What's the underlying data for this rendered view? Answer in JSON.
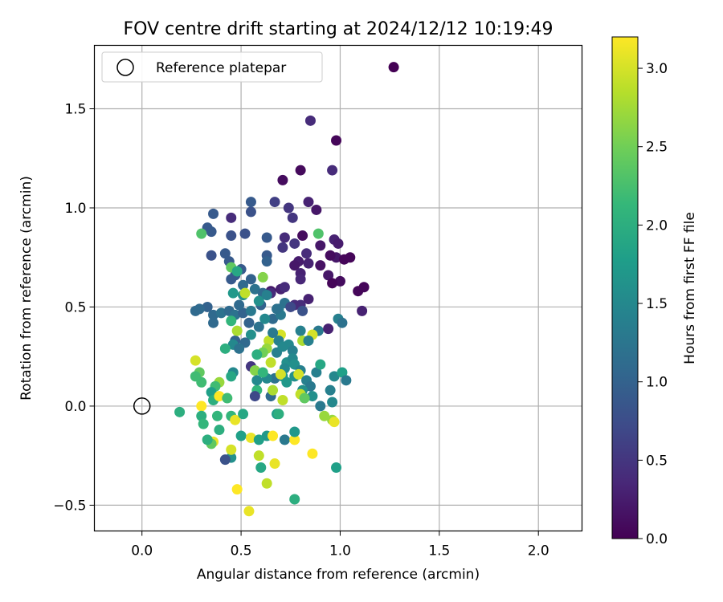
{
  "chart_data": {
    "type": "scatter",
    "title": "FOV centre drift starting at 2024/12/12 10:19:49",
    "xlabel": "Angular distance from reference (arcmin)",
    "ylabel": "Rotation from reference (arcmin)",
    "xlim": [
      -0.24,
      2.22
    ],
    "ylim": [
      -0.63,
      1.82
    ],
    "xticks": [
      0.0,
      0.5,
      1.0,
      1.5,
      2.0
    ],
    "xtick_labels": [
      "0.0",
      "0.5",
      "1.0",
      "1.5",
      "2.0"
    ],
    "yticks": [
      -0.5,
      0.0,
      0.5,
      1.0,
      1.5
    ],
    "ytick_labels": [
      "−0.5",
      "0.0",
      "0.5",
      "1.0",
      "1.5"
    ],
    "grid": true,
    "legend": {
      "position": "upper-left",
      "label": "Reference platepar"
    },
    "reference_point": {
      "x": 0.0,
      "y": 0.0
    },
    "colorbar": {
      "label": "Hours from first FF file",
      "colormap": "viridis",
      "range": [
        0.0,
        3.2
      ],
      "ticks": [
        0.0,
        0.5,
        1.0,
        1.5,
        2.0,
        2.5,
        3.0
      ],
      "tick_labels": [
        "0.0",
        "0.5",
        "1.0",
        "1.5",
        "2.0",
        "2.5",
        "3.0"
      ]
    },
    "colors": {
      "viridis": [
        "#440154",
        "#482878",
        "#3e4a89",
        "#31688e",
        "#26828e",
        "#1f9e89",
        "#35b779",
        "#6ece58",
        "#b5de2b",
        "#fde725"
      ]
    },
    "points": [
      [
        1.27,
        1.71,
        0.0
      ],
      [
        0.98,
        1.34,
        0.05
      ],
      [
        0.8,
        1.19,
        0.08
      ],
      [
        0.71,
        1.14,
        0.1
      ],
      [
        0.85,
        1.44,
        0.4
      ],
      [
        0.96,
        1.19,
        0.4
      ],
      [
        0.84,
        1.03,
        0.3
      ],
      [
        0.88,
        0.99,
        0.2
      ],
      [
        0.74,
        1.0,
        0.5
      ],
      [
        0.67,
        1.03,
        0.6
      ],
      [
        0.76,
        0.95,
        0.5
      ],
      [
        0.72,
        0.85,
        0.4
      ],
      [
        0.77,
        0.82,
        0.5
      ],
      [
        0.71,
        0.8,
        0.5
      ],
      [
        0.81,
        0.86,
        0.1
      ],
      [
        0.9,
        0.81,
        0.2
      ],
      [
        0.97,
        0.84,
        0.3
      ],
      [
        0.99,
        0.82,
        0.25
      ],
      [
        0.98,
        0.75,
        0.2
      ],
      [
        0.95,
        0.76,
        0.1
      ],
      [
        1.02,
        0.74,
        0.05
      ],
      [
        1.05,
        0.75,
        0.05
      ],
      [
        0.9,
        0.71,
        0.15
      ],
      [
        0.84,
        0.72,
        0.3
      ],
      [
        0.83,
        0.77,
        0.4
      ],
      [
        0.79,
        0.73,
        0.25
      ],
      [
        0.77,
        0.71,
        0.2
      ],
      [
        0.8,
        0.67,
        0.3
      ],
      [
        0.8,
        0.64,
        0.35
      ],
      [
        0.94,
        0.66,
        0.2
      ],
      [
        1.0,
        0.63,
        0.1
      ],
      [
        0.96,
        0.62,
        0.05
      ],
      [
        1.09,
        0.58,
        0.05
      ],
      [
        1.12,
        0.6,
        0.05
      ],
      [
        0.84,
        0.54,
        0.3
      ],
      [
        0.8,
        0.51,
        0.4
      ],
      [
        0.77,
        0.51,
        0.4
      ],
      [
        0.7,
        0.59,
        0.3
      ],
      [
        0.72,
        0.6,
        0.4
      ],
      [
        0.65,
        0.58,
        0.2
      ],
      [
        0.55,
        0.98,
        0.8
      ],
      [
        0.55,
        1.03,
        0.9
      ],
      [
        0.36,
        0.97,
        0.9
      ],
      [
        0.33,
        0.9,
        0.9
      ],
      [
        0.35,
        0.88,
        0.9
      ],
      [
        0.45,
        0.95,
        0.4
      ],
      [
        0.45,
        0.86,
        0.8
      ],
      [
        0.52,
        0.87,
        0.8
      ],
      [
        0.63,
        0.85,
        0.9
      ],
      [
        0.63,
        0.76,
        0.9
      ],
      [
        0.63,
        0.73,
        1.0
      ],
      [
        0.42,
        0.77,
        0.9
      ],
      [
        0.44,
        0.73,
        0.9
      ],
      [
        0.35,
        0.76,
        0.8
      ],
      [
        0.47,
        0.66,
        0.9
      ],
      [
        0.5,
        0.69,
        0.9
      ],
      [
        0.55,
        0.64,
        1.0
      ],
      [
        0.51,
        0.61,
        1.1
      ],
      [
        0.45,
        0.64,
        0.9
      ],
      [
        0.57,
        0.59,
        1.2
      ],
      [
        0.61,
        0.57,
        1.1
      ],
      [
        0.65,
        0.57,
        0.4
      ],
      [
        0.69,
        0.49,
        1.3
      ],
      [
        0.72,
        0.52,
        1.2
      ],
      [
        0.75,
        0.5,
        0.7
      ],
      [
        0.81,
        0.48,
        0.8
      ],
      [
        1.11,
        0.48,
        0.3
      ],
      [
        0.89,
        0.38,
        1.3
      ],
      [
        0.94,
        0.39,
        0.3
      ],
      [
        0.99,
        0.44,
        1.4
      ],
      [
        1.01,
        0.42,
        1.2
      ],
      [
        0.36,
        0.46,
        1.1
      ],
      [
        0.33,
        0.5,
        1.0
      ],
      [
        0.27,
        0.48,
        1.1
      ],
      [
        0.29,
        0.49,
        1.1
      ],
      [
        0.36,
        0.42,
        1.1
      ],
      [
        0.4,
        0.47,
        1.2
      ],
      [
        0.44,
        0.48,
        1.1
      ],
      [
        0.47,
        0.46,
        1.2
      ],
      [
        0.51,
        0.47,
        1.0
      ],
      [
        0.49,
        0.51,
        1.1
      ],
      [
        0.55,
        0.48,
        1.3
      ],
      [
        0.6,
        0.51,
        1.0
      ],
      [
        0.54,
        0.42,
        1.0
      ],
      [
        0.59,
        0.4,
        1.2
      ],
      [
        0.66,
        0.44,
        1.1
      ],
      [
        0.7,
        0.46,
        1.3
      ],
      [
        0.8,
        0.38,
        1.4
      ],
      [
        0.81,
        0.33,
        2.8
      ],
      [
        0.86,
        0.36,
        3.0
      ],
      [
        0.84,
        0.33,
        1.4
      ],
      [
        0.74,
        0.31,
        1.5
      ],
      [
        0.76,
        0.28,
        1.4
      ],
      [
        0.7,
        0.36,
        3.0
      ],
      [
        0.64,
        0.33,
        2.9
      ],
      [
        0.63,
        0.29,
        2.7
      ],
      [
        0.61,
        0.27,
        2.5
      ],
      [
        0.58,
        0.26,
        2.0
      ],
      [
        0.55,
        0.36,
        1.6
      ],
      [
        0.52,
        0.32,
        1.1
      ],
      [
        0.47,
        0.33,
        1.0
      ],
      [
        0.48,
        0.38,
        2.8
      ],
      [
        0.45,
        0.43,
        2.1
      ],
      [
        0.46,
        0.31,
        1.5
      ],
      [
        0.42,
        0.29,
        2.0
      ],
      [
        0.49,
        0.29,
        1.2
      ],
      [
        0.46,
        0.17,
        1.5
      ],
      [
        0.45,
        0.15,
        1.9
      ],
      [
        0.51,
        0.56,
        1.6
      ],
      [
        0.52,
        0.57,
        2.9
      ],
      [
        0.46,
        0.57,
        1.7
      ],
      [
        0.45,
        0.7,
        2.4
      ],
      [
        0.48,
        0.68,
        1.9
      ],
      [
        0.61,
        0.65,
        2.6
      ],
      [
        0.59,
        0.53,
        1.6
      ],
      [
        0.63,
        0.56,
        1.4
      ],
      [
        0.68,
        0.49,
        1.2
      ],
      [
        0.62,
        0.44,
        1.5
      ],
      [
        0.66,
        0.37,
        1.3
      ],
      [
        0.69,
        0.33,
        1.4
      ],
      [
        0.68,
        0.27,
        1.4
      ],
      [
        0.71,
        0.3,
        1.5
      ],
      [
        0.73,
        0.22,
        1.6
      ],
      [
        0.76,
        0.24,
        1.5
      ],
      [
        0.72,
        0.19,
        1.5
      ],
      [
        0.77,
        0.21,
        1.6
      ],
      [
        0.8,
        0.18,
        1.4
      ],
      [
        0.77,
        0.15,
        1.6
      ],
      [
        0.71,
        0.15,
        1.7
      ],
      [
        0.67,
        0.14,
        1.2
      ],
      [
        0.65,
        0.22,
        2.9
      ],
      [
        0.55,
        0.2,
        0.5
      ],
      [
        0.57,
        0.18,
        2.6
      ],
      [
        0.63,
        0.14,
        1.5
      ],
      [
        0.7,
        0.16,
        3.0
      ],
      [
        0.73,
        0.12,
        1.7
      ],
      [
        0.79,
        0.16,
        3.0
      ],
      [
        0.83,
        0.13,
        1.4
      ],
      [
        0.88,
        0.17,
        1.4
      ],
      [
        0.9,
        0.21,
        1.9
      ],
      [
        0.97,
        0.15,
        1.5
      ],
      [
        1.01,
        0.17,
        1.8
      ],
      [
        1.03,
        0.13,
        1.3
      ],
      [
        0.85,
        0.1,
        1.3
      ],
      [
        0.81,
        0.08,
        1.6
      ],
      [
        0.8,
        0.06,
        2.9
      ],
      [
        0.86,
        0.05,
        1.6
      ],
      [
        0.9,
        0.0,
        1.3
      ],
      [
        0.95,
        0.08,
        1.4
      ],
      [
        0.96,
        0.02,
        1.5
      ],
      [
        0.82,
        0.04,
        2.4
      ],
      [
        0.65,
        0.05,
        1.1
      ],
      [
        0.66,
        0.08,
        2.8
      ],
      [
        0.71,
        0.03,
        2.9
      ],
      [
        0.58,
        0.08,
        2.1
      ],
      [
        0.57,
        0.05,
        0.7
      ],
      [
        0.58,
        0.13,
        1.5
      ],
      [
        0.61,
        0.17,
        2.1
      ],
      [
        0.39,
        0.12,
        2.7
      ],
      [
        0.37,
        0.1,
        2.2
      ],
      [
        0.3,
        0.12,
        2.2
      ],
      [
        0.29,
        0.17,
        2.4
      ],
      [
        0.27,
        0.15,
        2.2
      ],
      [
        0.27,
        0.23,
        3.0
      ],
      [
        0.35,
        0.07,
        1.8
      ],
      [
        0.36,
        0.03,
        2.0
      ],
      [
        0.39,
        0.05,
        3.2
      ],
      [
        0.43,
        0.04,
        2.2
      ],
      [
        0.3,
        0.0,
        3.2
      ],
      [
        0.19,
        -0.03,
        2.0
      ],
      [
        0.3,
        -0.05,
        2.0
      ],
      [
        0.31,
        -0.09,
        2.1
      ],
      [
        0.38,
        -0.05,
        2.1
      ],
      [
        0.45,
        -0.05,
        2.1
      ],
      [
        0.47,
        -0.07,
        3.1
      ],
      [
        0.51,
        -0.04,
        1.9
      ],
      [
        0.5,
        -0.15,
        1.8
      ],
      [
        0.55,
        -0.16,
        3.1
      ],
      [
        0.59,
        -0.17,
        1.8
      ],
      [
        0.63,
        -0.15,
        1.7
      ],
      [
        0.66,
        -0.15,
        3.2
      ],
      [
        0.72,
        -0.17,
        1.3
      ],
      [
        0.77,
        -0.17,
        3.2
      ],
      [
        0.77,
        -0.13,
        1.7
      ],
      [
        0.68,
        -0.04,
        1.8
      ],
      [
        0.69,
        -0.04,
        2.0
      ],
      [
        0.92,
        -0.05,
        2.7
      ],
      [
        0.96,
        -0.07,
        2.7
      ],
      [
        0.97,
        -0.08,
        3.1
      ],
      [
        0.86,
        -0.24,
        3.2
      ],
      [
        0.98,
        -0.31,
        1.8
      ],
      [
        0.6,
        -0.31,
        1.9
      ],
      [
        0.59,
        -0.25,
        2.9
      ],
      [
        0.67,
        -0.29,
        3.1
      ],
      [
        0.63,
        -0.39,
        2.9
      ],
      [
        0.48,
        -0.42,
        3.2
      ],
      [
        0.54,
        -0.53,
        3.1
      ],
      [
        0.77,
        -0.47,
        2.0
      ],
      [
        0.45,
        -0.26,
        1.6
      ],
      [
        0.42,
        -0.27,
        0.8
      ],
      [
        0.45,
        -0.22,
        3.0
      ],
      [
        0.36,
        -0.18,
        3.1
      ],
      [
        0.35,
        -0.19,
        2.4
      ],
      [
        0.33,
        -0.17,
        2.0
      ],
      [
        0.39,
        -0.12,
        2.0
      ],
      [
        0.3,
        0.87,
        2.3
      ],
      [
        0.89,
        0.87,
        2.3
      ]
    ]
  }
}
